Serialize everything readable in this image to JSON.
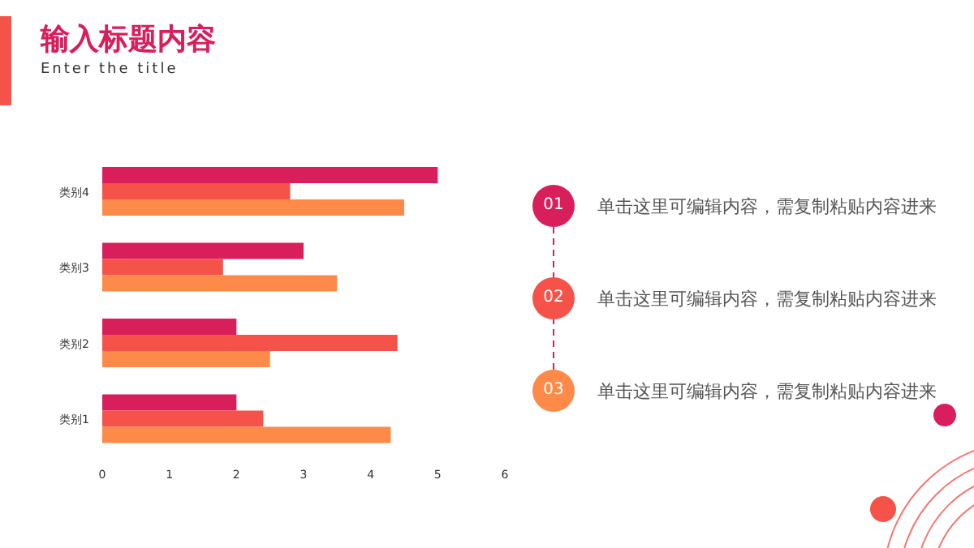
{
  "chart_data": {
    "type": "bar",
    "orientation": "horizontal",
    "title": "输入标题内容",
    "subtitle": "Enter the title",
    "categories": [
      "类别4",
      "类别3",
      "类别2",
      "类别1"
    ],
    "series": [
      {
        "color": "#d81e5b",
        "values": [
          5,
          3,
          2,
          2
        ]
      },
      {
        "color": "#f5534a",
        "values": [
          2.8,
          1.8,
          4.4,
          2.4
        ]
      },
      {
        "color": "#fd8a48",
        "values": [
          4.5,
          3.5,
          2.5,
          4.3
        ]
      }
    ],
    "xlim": [
      0,
      6
    ],
    "xticks": [
      0,
      1,
      2,
      3,
      4,
      5,
      6
    ],
    "grid": false,
    "legend": false,
    "annotations": [
      "01 单击这里可编辑内容，需复制粘贴内容进来",
      "02 单击这里可编辑内容，需复制粘贴内容进来",
      "03 单击这里可编辑内容，需复制粘贴内容进来"
    ]
  }
}
